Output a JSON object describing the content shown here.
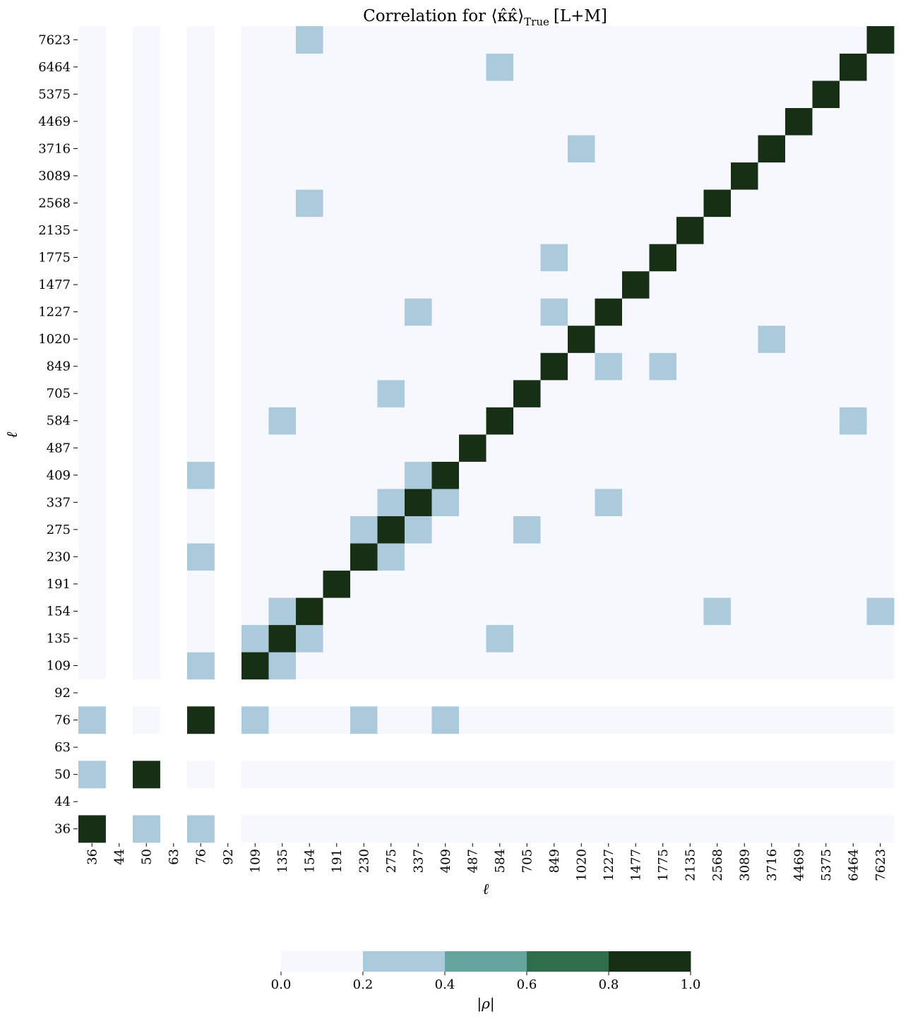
{
  "chart_data": {
    "type": "heatmap",
    "title": "Correlation for ⟨κ̂κ̂⟩True [L+M]",
    "title_main": "Correlation for ⟨κ̂κ̂⟩",
    "title_subscript": "True",
    "title_suffix": "[L+M]",
    "xlabel": "ℓ",
    "ylabel": "ℓ",
    "ticks": [
      "36",
      "44",
      "50",
      "63",
      "76",
      "92",
      "109",
      "135",
      "154",
      "191",
      "230",
      "275",
      "337",
      "409",
      "487",
      "584",
      "705",
      "849",
      "1020",
      "1227",
      "1477",
      "1775",
      "2135",
      "2568",
      "3089",
      "3716",
      "4469",
      "5375",
      "6464",
      "7623"
    ],
    "empty_bins": [
      "44",
      "63",
      "92"
    ],
    "low_value": 0.1,
    "level_values": {
      "light": 0.3,
      "strong": 0.9
    },
    "strong_cells": [
      [
        "36",
        "36"
      ],
      [
        "50",
        "50"
      ],
      [
        "76",
        "76"
      ],
      [
        "109",
        "109"
      ],
      [
        "135",
        "135"
      ],
      [
        "154",
        "154"
      ],
      [
        "191",
        "191"
      ],
      [
        "230",
        "230"
      ],
      [
        "275",
        "275"
      ],
      [
        "337",
        "337"
      ],
      [
        "409",
        "409"
      ],
      [
        "487",
        "487"
      ],
      [
        "584",
        "584"
      ],
      [
        "705",
        "705"
      ],
      [
        "849",
        "849"
      ],
      [
        "1020",
        "1020"
      ],
      [
        "1227",
        "1227"
      ],
      [
        "1477",
        "1477"
      ],
      [
        "1775",
        "1775"
      ],
      [
        "2135",
        "2135"
      ],
      [
        "2568",
        "2568"
      ],
      [
        "3089",
        "3089"
      ],
      [
        "3716",
        "3716"
      ],
      [
        "4469",
        "4469"
      ],
      [
        "5375",
        "5375"
      ],
      [
        "6464",
        "6464"
      ],
      [
        "7623",
        "7623"
      ]
    ],
    "light_cells": [
      [
        "154",
        "7623"
      ],
      [
        "584",
        "6464"
      ],
      [
        "1020",
        "3716"
      ],
      [
        "154",
        "2568"
      ],
      [
        "849",
        "1775"
      ],
      [
        "337",
        "1227"
      ],
      [
        "849",
        "1227"
      ],
      [
        "3716",
        "1020"
      ],
      [
        "1227",
        "849"
      ],
      [
        "1775",
        "849"
      ],
      [
        "275",
        "705"
      ],
      [
        "135",
        "584"
      ],
      [
        "6464",
        "584"
      ],
      [
        "76",
        "409"
      ],
      [
        "337",
        "409"
      ],
      [
        "275",
        "337"
      ],
      [
        "409",
        "337"
      ],
      [
        "1227",
        "337"
      ],
      [
        "230",
        "275"
      ],
      [
        "337",
        "275"
      ],
      [
        "705",
        "275"
      ],
      [
        "76",
        "230"
      ],
      [
        "275",
        "230"
      ],
      [
        "135",
        "154"
      ],
      [
        "2568",
        "154"
      ],
      [
        "7623",
        "154"
      ],
      [
        "109",
        "135"
      ],
      [
        "154",
        "135"
      ],
      [
        "584",
        "135"
      ],
      [
        "76",
        "109"
      ],
      [
        "135",
        "109"
      ],
      [
        "36",
        "76"
      ],
      [
        "109",
        "76"
      ],
      [
        "230",
        "76"
      ],
      [
        "409",
        "76"
      ],
      [
        "36",
        "50"
      ],
      [
        "50",
        "36"
      ],
      [
        "76",
        "36"
      ]
    ],
    "cell_order": "[x_tick, y_tick]",
    "colorbar": {
      "label": "|ρ|",
      "ticks": [
        "0.0",
        "0.2",
        "0.4",
        "0.6",
        "0.8",
        "1.0"
      ],
      "range": [
        0,
        1
      ],
      "colors": [
        "#f7f8fe",
        "#abcbdc",
        "#63a59c",
        "#2f6e4a",
        "#172f15"
      ]
    }
  }
}
